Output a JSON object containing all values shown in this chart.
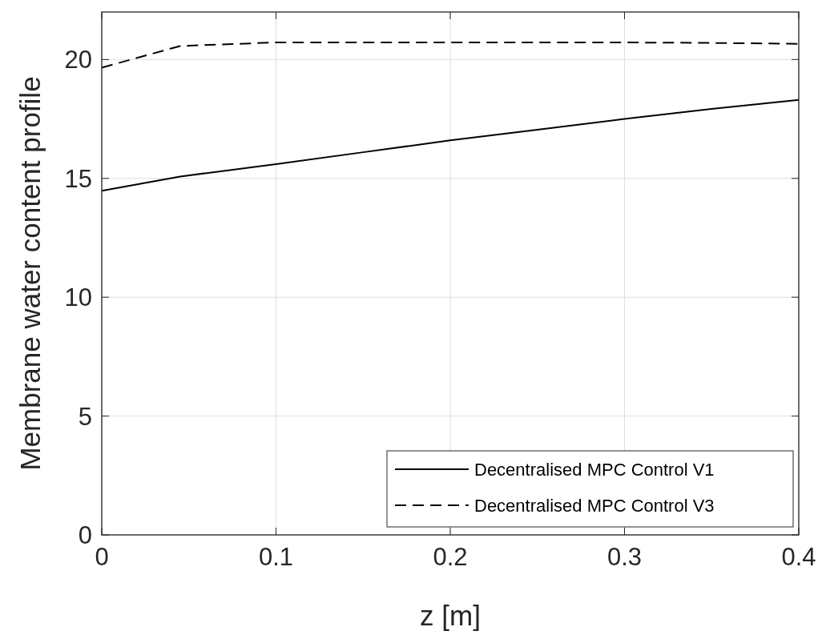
{
  "chart_data": {
    "type": "line",
    "xlabel": "z [m]",
    "ylabel": "Membrane water content profile",
    "xlim": [
      0,
      0.4
    ],
    "xticks": [
      0,
      0.1,
      0.2,
      0.3,
      0.4
    ],
    "ylim": [
      0,
      22
    ],
    "yticks": [
      0,
      5,
      10,
      15,
      20
    ],
    "grid": true,
    "legend": "bottom right",
    "x": [
      0,
      0.045,
      0.1,
      0.15,
      0.2,
      0.25,
      0.3,
      0.35,
      0.4
    ],
    "series": [
      {
        "name": "Decentralised MPC Control V1",
        "color": "#000000",
        "line_style": "solid",
        "values": [
          14.48,
          15.08,
          15.6,
          16.1,
          16.6,
          17.05,
          17.5,
          17.92,
          18.3
        ]
      },
      {
        "name": "Decentralised MPC Control V3",
        "color": "#000000",
        "line_style": "dashed",
        "values": [
          19.66,
          20.57,
          20.72,
          20.72,
          20.72,
          20.72,
          20.72,
          20.7,
          20.66
        ]
      }
    ]
  }
}
